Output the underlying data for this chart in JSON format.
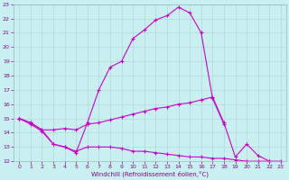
{
  "title": "",
  "xlabel": "Windchill (Refroidissement éolien,°C)",
  "ylabel": "",
  "bg_color": "#c8f0f0",
  "grid_color": "#b0d8d8",
  "line_color": "#cc00cc",
  "xlim": [
    -0.5,
    23.5
  ],
  "ylim": [
    12,
    23
  ],
  "xticks": [
    0,
    1,
    2,
    3,
    4,
    5,
    6,
    7,
    8,
    9,
    10,
    11,
    12,
    13,
    14,
    15,
    16,
    17,
    18,
    19,
    20,
    21,
    22,
    23
  ],
  "yticks": [
    12,
    13,
    14,
    15,
    16,
    17,
    18,
    19,
    20,
    21,
    22,
    23
  ],
  "series1_x": [
    0,
    1,
    2,
    3,
    4,
    5,
    6,
    7,
    8,
    9,
    10,
    11,
    12,
    13,
    14,
    15,
    16,
    17,
    18
  ],
  "series1_y": [
    15.0,
    14.6,
    14.1,
    13.2,
    13.0,
    12.6,
    14.7,
    17.0,
    18.6,
    19.0,
    20.6,
    21.2,
    21.9,
    22.2,
    22.8,
    22.4,
    21.0,
    16.4,
    14.6
  ],
  "series2_x": [
    0,
    1,
    2,
    3,
    4,
    5,
    6,
    7,
    8,
    9,
    10,
    11,
    12,
    13,
    14,
    15,
    16,
    17,
    18,
    19,
    20,
    21,
    22
  ],
  "series2_y": [
    15.0,
    14.7,
    14.2,
    14.2,
    14.3,
    14.2,
    14.6,
    14.7,
    14.9,
    15.1,
    15.3,
    15.5,
    15.7,
    15.8,
    16.0,
    16.1,
    16.3,
    16.5,
    14.7,
    12.3,
    13.2,
    12.4,
    12.0
  ],
  "series3_x": [
    0,
    1,
    2,
    3,
    4,
    5,
    6,
    7,
    8,
    9,
    10,
    11,
    12,
    13,
    14,
    15,
    16,
    17,
    18,
    19,
    20,
    21,
    22,
    23
  ],
  "series3_y": [
    15.0,
    14.7,
    14.2,
    13.2,
    13.0,
    12.7,
    13.0,
    13.0,
    13.0,
    12.9,
    12.7,
    12.7,
    12.6,
    12.5,
    12.4,
    12.3,
    12.3,
    12.2,
    12.2,
    12.1,
    12.0,
    12.0,
    12.0,
    12.0
  ],
  "tick_labelsize": 4.5,
  "xlabel_fontsize": 5.0,
  "xlabel_color": "#880088",
  "tick_color": "#880088"
}
